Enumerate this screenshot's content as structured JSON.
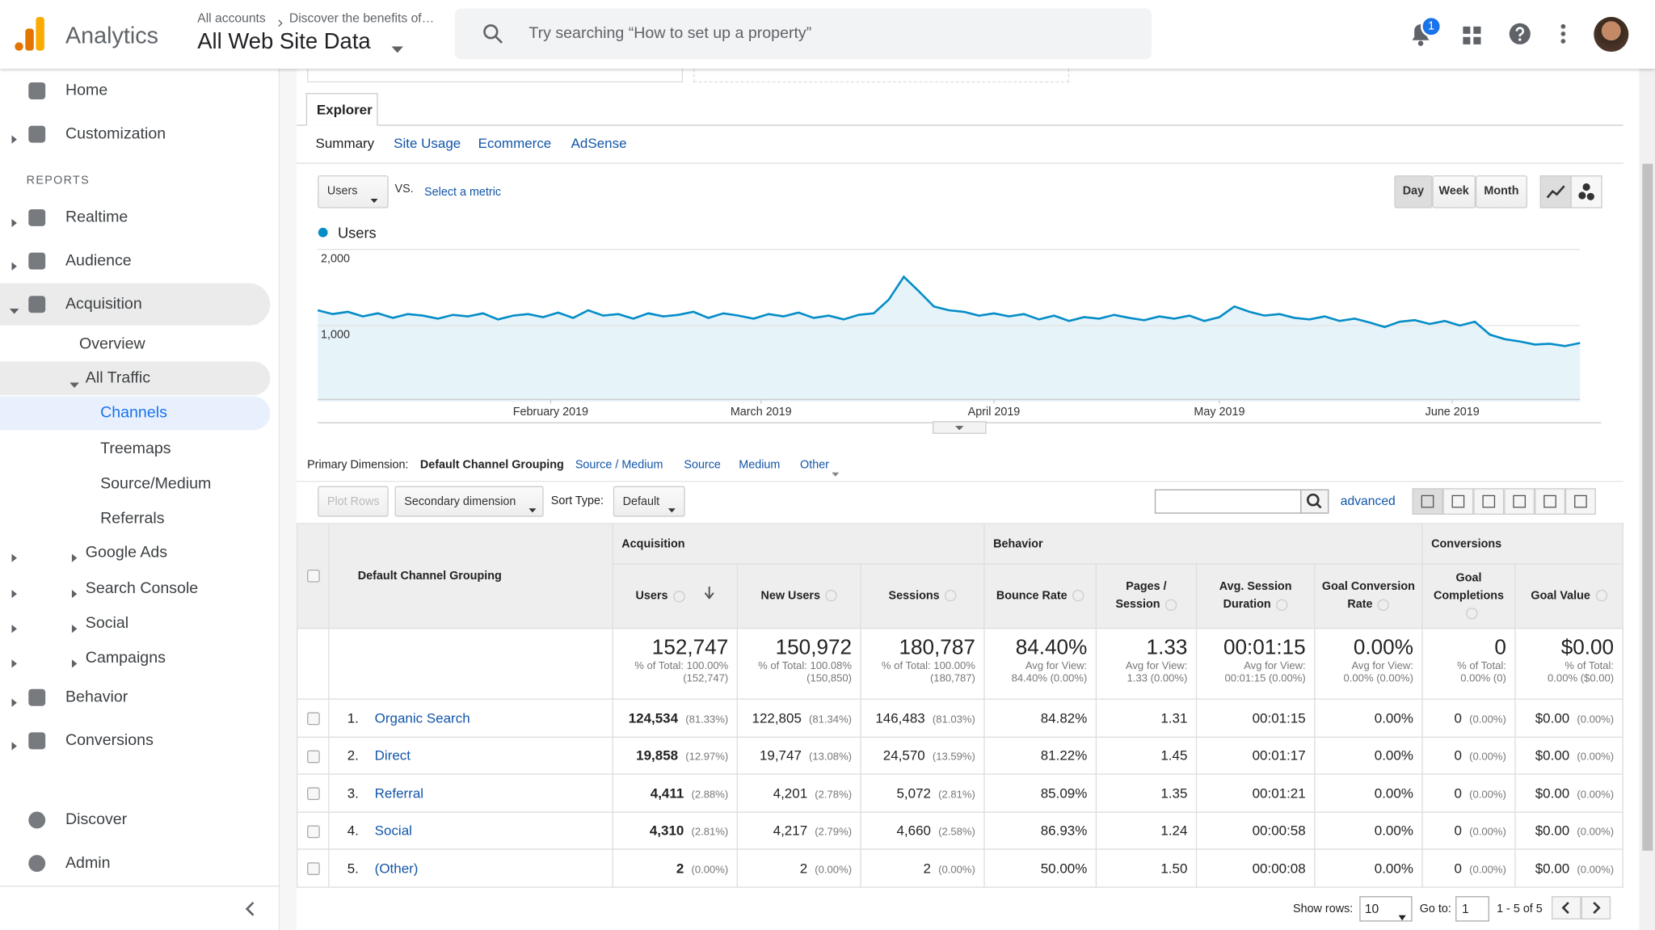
{
  "header": {
    "app_name": "Analytics",
    "breadcrumb": [
      "All accounts",
      "Discover the benefits of…"
    ],
    "property": "All Web Site Data",
    "search_placeholder": "Try searching “How to set up a property”",
    "notifications": 1
  },
  "sidebar": {
    "top": [
      "Home",
      "Customization"
    ],
    "section_label": "REPORTS",
    "reports": [
      "Realtime",
      "Audience",
      "Acquisition",
      "Overview",
      "All Traffic",
      "Channels",
      "Treemaps",
      "Source/Medium",
      "Referrals",
      "Google Ads",
      "Search Console",
      "Social",
      "Campaigns",
      "Behavior",
      "Conversions"
    ],
    "bottom": [
      "Discover",
      "Admin"
    ]
  },
  "explorer": {
    "tab": "Explorer",
    "subtabs": [
      "Summary",
      "Site Usage",
      "Ecommerce",
      "AdSense"
    ],
    "metric": "Users",
    "vs": "VS.",
    "select_metric": "Select a metric",
    "periods": [
      "Day",
      "Week",
      "Month"
    ]
  },
  "chart_data": {
    "type": "line",
    "series": [
      {
        "name": "Users",
        "color": "#058dc7",
        "values": [
          1200,
          1150,
          1180,
          1120,
          1160,
          1100,
          1150,
          1130,
          1090,
          1140,
          1120,
          1160,
          1080,
          1130,
          1150,
          1110,
          1170,
          1100,
          1200,
          1130,
          1150,
          1090,
          1160,
          1120,
          1140,
          1180,
          1100,
          1160,
          1130,
          1090,
          1150,
          1120,
          1170,
          1100,
          1130,
          1080,
          1140,
          1160,
          1340,
          1640,
          1450,
          1250,
          1200,
          1180,
          1130,
          1160,
          1120,
          1150,
          1080,
          1130,
          1060,
          1110,
          1090,
          1140,
          1100,
          1070,
          1120,
          1090,
          1130,
          1060,
          1110,
          1250,
          1180,
          1130,
          1150,
          1100,
          1080,
          1120,
          1060,
          1090,
          1040,
          980,
          1050,
          1070,
          1020,
          1060,
          1000,
          1050,
          880,
          820,
          790,
          750,
          760,
          730,
          770
        ]
      }
    ],
    "xlim": [
      0,
      84
    ],
    "xticks": [
      {
        "value": 15.5,
        "label": "February 2019"
      },
      {
        "value": 29.5,
        "label": "March 2019"
      },
      {
        "value": 45,
        "label": "April 2019"
      },
      {
        "value": 60,
        "label": "May 2019"
      },
      {
        "value": 75.5,
        "label": "June 2019"
      }
    ],
    "ylim": [
      0,
      2000
    ],
    "yticks": [
      {
        "value": 1000,
        "label": "1,000"
      },
      {
        "value": 2000,
        "label": "2,000"
      }
    ],
    "grid": true
  },
  "dimensions": {
    "label": "Primary Dimension:",
    "active": "Default Channel Grouping",
    "options": [
      "Source / Medium",
      "Source",
      "Medium",
      "Other"
    ]
  },
  "toolbar": {
    "plot_rows": "Plot Rows",
    "secondary": "Secondary dimension",
    "sort_label": "Sort Type:",
    "sort_value": "Default",
    "advanced": "advanced"
  },
  "table": {
    "groups": [
      "Acquisition",
      "Behavior",
      "Conversions"
    ],
    "dimension": "Default Channel Grouping",
    "columns": [
      "Users",
      "New Users",
      "Sessions",
      "Bounce Rate",
      "Pages / Session",
      "Avg. Session Duration",
      "Goal Conversion Rate",
      "Goal Completions",
      "Goal Value"
    ],
    "totals": [
      {
        "value": "152,747",
        "note": "% of Total: 100.00% (152,747)"
      },
      {
        "value": "150,972",
        "note": "% of Total: 100.08% (150,850)"
      },
      {
        "value": "180,787",
        "note": "% of Total: 100.00% (180,787)"
      },
      {
        "value": "84.40%",
        "note": "Avg for View: 84.40% (0.00%)"
      },
      {
        "value": "1.33",
        "note": "Avg for View: 1.33 (0.00%)"
      },
      {
        "value": "00:01:15",
        "note": "Avg for View: 00:01:15 (0.00%)"
      },
      {
        "value": "0.00%",
        "note": "Avg for View: 0.00% (0.00%)"
      },
      {
        "value": "0",
        "note": "% of Total: 0.00% (0)"
      },
      {
        "value": "$0.00",
        "note": "% of Total: 0.00% ($0.00)"
      }
    ],
    "rows": [
      {
        "rank": "1.",
        "name": "Organic Search",
        "cells": [
          [
            "124,534",
            "(81.33%)"
          ],
          [
            "122,805",
            "(81.34%)"
          ],
          [
            "146,483",
            "(81.03%)"
          ],
          [
            "84.82%"
          ],
          [
            "1.31"
          ],
          [
            "00:01:15"
          ],
          [
            "0.00%"
          ],
          [
            "0",
            "(0.00%)"
          ],
          [
            "$0.00",
            "(0.00%)"
          ]
        ]
      },
      {
        "rank": "2.",
        "name": "Direct",
        "cells": [
          [
            "19,858",
            "(12.97%)"
          ],
          [
            "19,747",
            "(13.08%)"
          ],
          [
            "24,570",
            "(13.59%)"
          ],
          [
            "81.22%"
          ],
          [
            "1.45"
          ],
          [
            "00:01:17"
          ],
          [
            "0.00%"
          ],
          [
            "0",
            "(0.00%)"
          ],
          [
            "$0.00",
            "(0.00%)"
          ]
        ]
      },
      {
        "rank": "3.",
        "name": "Referral",
        "cells": [
          [
            "4,411",
            "(2.88%)"
          ],
          [
            "4,201",
            "(2.78%)"
          ],
          [
            "5,072",
            "(2.81%)"
          ],
          [
            "85.09%"
          ],
          [
            "1.35"
          ],
          [
            "00:01:21"
          ],
          [
            "0.00%"
          ],
          [
            "0",
            "(0.00%)"
          ],
          [
            "$0.00",
            "(0.00%)"
          ]
        ]
      },
      {
        "rank": "4.",
        "name": "Social",
        "cells": [
          [
            "4,310",
            "(2.81%)"
          ],
          [
            "4,217",
            "(2.79%)"
          ],
          [
            "4,660",
            "(2.58%)"
          ],
          [
            "86.93%"
          ],
          [
            "1.24"
          ],
          [
            "00:00:58"
          ],
          [
            "0.00%"
          ],
          [
            "0",
            "(0.00%)"
          ],
          [
            "$0.00",
            "(0.00%)"
          ]
        ]
      },
      {
        "rank": "5.",
        "name": "(Other)",
        "cells": [
          [
            "2",
            "(0.00%)"
          ],
          [
            "2",
            "(0.00%)"
          ],
          [
            "2",
            "(0.00%)"
          ],
          [
            "50.00%"
          ],
          [
            "1.50"
          ],
          [
            "00:00:08"
          ],
          [
            "0.00%"
          ],
          [
            "0",
            "(0.00%)"
          ],
          [
            "$0.00",
            "(0.00%)"
          ]
        ]
      }
    ]
  },
  "pagination": {
    "show_rows": "Show rows:",
    "rows_value": "10",
    "goto": "Go to:",
    "page": "1",
    "range": "1 - 5 of 5"
  }
}
